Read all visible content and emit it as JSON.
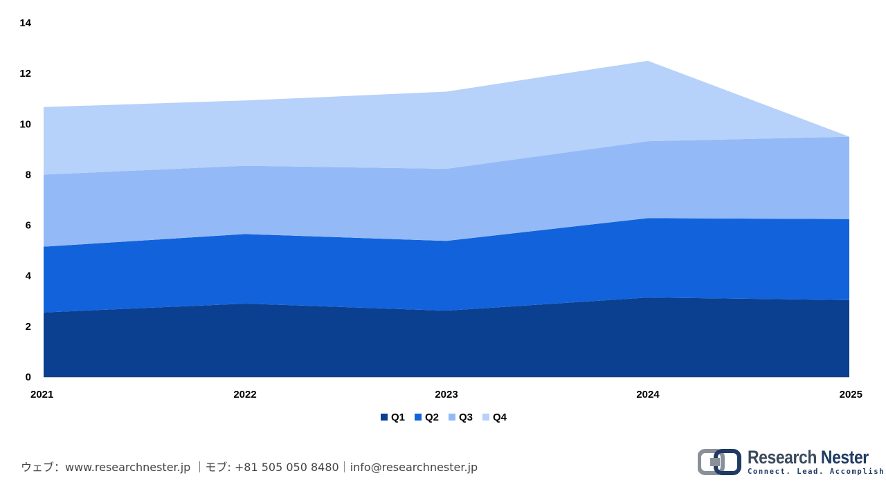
{
  "chart_data": {
    "type": "area",
    "stacked": true,
    "categories": [
      "2021",
      "2022",
      "2023",
      "2024",
      "2025"
    ],
    "series": [
      {
        "name": "Q1",
        "color": "#0b3f8f",
        "values": [
          2.55,
          2.9,
          2.62,
          3.14,
          3.04
        ]
      },
      {
        "name": "Q2",
        "color": "#1263db",
        "values": [
          2.6,
          2.75,
          2.76,
          3.14,
          3.2
        ]
      },
      {
        "name": "Q3",
        "color": "#93baf7",
        "values": [
          2.85,
          2.7,
          2.85,
          3.04,
          3.26
        ]
      },
      {
        "name": "Q4",
        "color": "#b6d1fa",
        "values": [
          2.67,
          2.58,
          3.05,
          3.18,
          0.0
        ]
      }
    ],
    "ylim": [
      0,
      14
    ],
    "yticks": [
      0,
      2,
      4,
      6,
      8,
      10,
      12,
      14
    ],
    "title": "",
    "xlabel": "",
    "ylabel": "",
    "legend": "bottom-center",
    "grid": false
  },
  "footer": {
    "contact": "ウェブ：www.researchnester.jp ｜モブ: +81 505 050 8480｜info@researchnester.jp"
  },
  "logo": {
    "name_part1": "Research",
    "name_part2": "Nester",
    "tagline": "Connect. Lead. Accomplish"
  }
}
